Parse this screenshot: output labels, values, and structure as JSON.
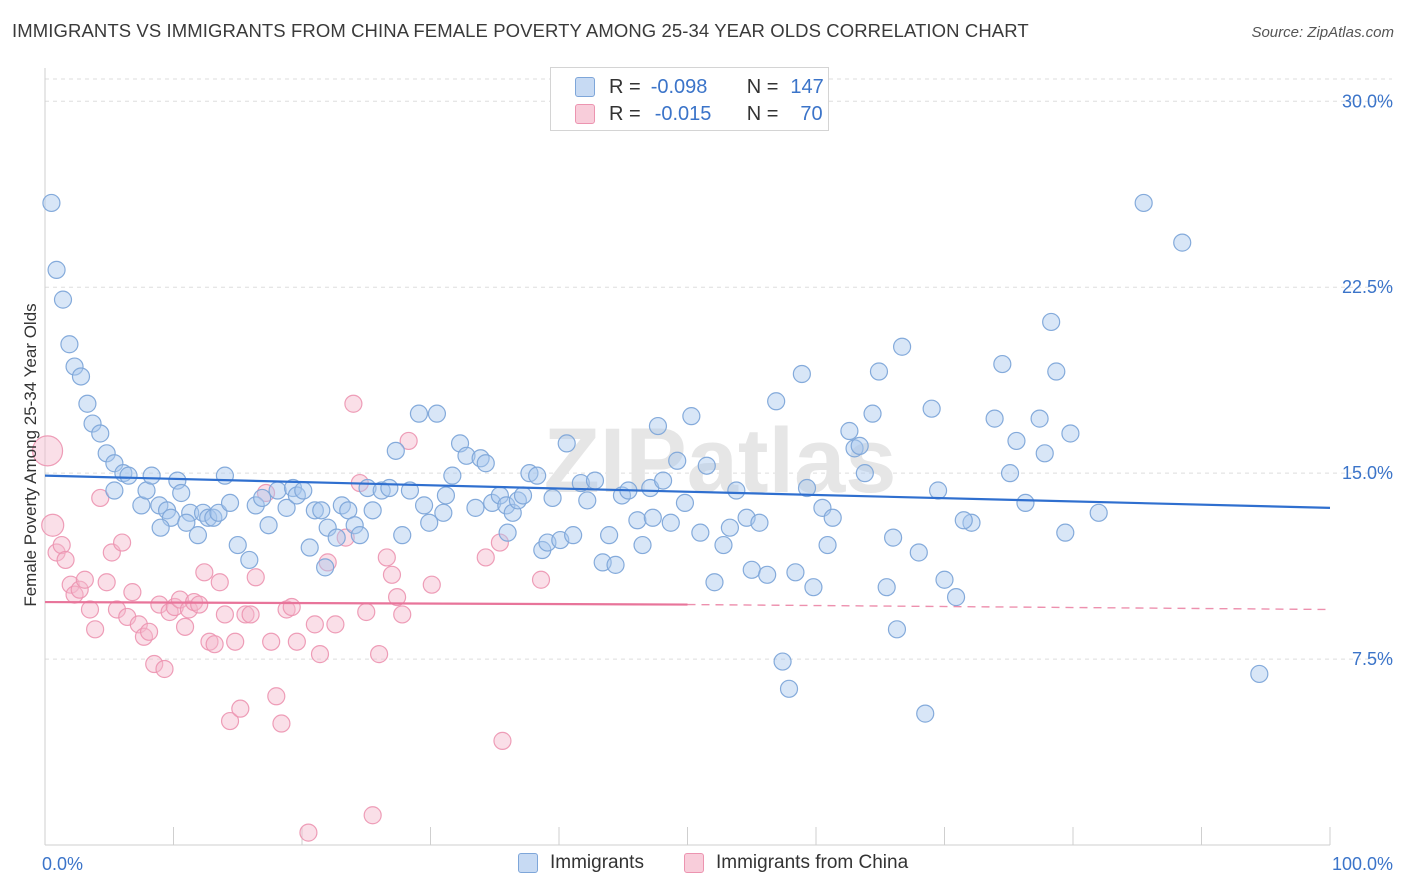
{
  "title": "IMMIGRANTS VS IMMIGRANTS FROM CHINA FEMALE POVERTY AMONG 25-34 YEAR OLDS CORRELATION CHART",
  "source": "Source: ZipAtlas.com",
  "watermark": "ZIPatlas",
  "legend": {
    "rows": [
      {
        "r_label": "R =",
        "r_value": "-0.098",
        "n_label": "N =",
        "n_value": "147"
      },
      {
        "r_label": "R =",
        "r_value": "-0.015",
        "n_label": "N =",
        "n_value": "70"
      }
    ]
  },
  "colors": {
    "blue_fill": "#a9c8ee",
    "blue_stroke": "#7ea6d9",
    "blue_line": "#2f6fcf",
    "pink_fill": "#f5b8cb",
    "pink_stroke": "#ec94b0",
    "pink_line": "#e8749a",
    "axis_text": "#3b74c9",
    "grid": "#dddddd"
  },
  "chart_data": {
    "type": "scatter",
    "title": "IMMIGRANTS VS IMMIGRANTS FROM CHINA FEMALE POVERTY AMONG 25-34 YEAR OLDS CORRELATION CHART",
    "xlabel": "",
    "ylabel": "Female Poverty Among 25-34 Year Olds",
    "xlim": [
      0,
      100
    ],
    "ylim": [
      0,
      30.9
    ],
    "x_tick_labels": [
      "0.0%",
      "100.0%"
    ],
    "y_ticks": [
      7.5,
      15.0,
      22.5,
      30.0
    ],
    "y_tick_labels": [
      "7.5%",
      "15.0%",
      "22.5%",
      "30.0%"
    ],
    "legend_position": "top-center",
    "series": [
      {
        "name": "Immigrants",
        "r": -0.098,
        "n": 147,
        "trend": {
          "x": [
            0,
            100
          ],
          "y": [
            14.9,
            13.6
          ]
        },
        "points": [
          [
            0.5,
            25.9
          ],
          [
            0.9,
            23.2
          ],
          [
            1.4,
            22.0
          ],
          [
            1.9,
            20.2
          ],
          [
            2.3,
            19.3
          ],
          [
            2.8,
            18.9
          ],
          [
            3.3,
            17.8
          ],
          [
            3.7,
            17.0
          ],
          [
            4.3,
            16.6
          ],
          [
            4.8,
            15.8
          ],
          [
            5.4,
            15.4
          ],
          [
            6.1,
            15.0
          ],
          [
            5.4,
            14.3
          ],
          [
            6.5,
            14.9
          ],
          [
            7.5,
            13.7
          ],
          [
            7.9,
            14.3
          ],
          [
            8.3,
            14.9
          ],
          [
            8.9,
            13.7
          ],
          [
            9.5,
            13.5
          ],
          [
            9.8,
            13.2
          ],
          [
            10.3,
            14.7
          ],
          [
            10.6,
            14.2
          ],
          [
            11.3,
            13.4
          ],
          [
            11.9,
            12.5
          ],
          [
            12.3,
            13.4
          ],
          [
            12.7,
            13.2
          ],
          [
            13.1,
            13.2
          ],
          [
            13.5,
            13.4
          ],
          [
            14.0,
            14.9
          ],
          [
            14.4,
            13.8
          ],
          [
            15.0,
            12.1
          ],
          [
            15.9,
            11.5
          ],
          [
            16.4,
            13.7
          ],
          [
            16.9,
            14.0
          ],
          [
            17.4,
            12.9
          ],
          [
            18.1,
            14.3
          ],
          [
            18.8,
            13.6
          ],
          [
            19.3,
            14.4
          ],
          [
            19.6,
            14.1
          ],
          [
            20.1,
            14.3
          ],
          [
            20.6,
            12.0
          ],
          [
            21.0,
            13.5
          ],
          [
            21.5,
            13.5
          ],
          [
            22.0,
            12.8
          ],
          [
            22.7,
            12.4
          ],
          [
            23.1,
            13.7
          ],
          [
            23.6,
            13.5
          ],
          [
            24.1,
            12.9
          ],
          [
            24.5,
            12.5
          ],
          [
            25.1,
            14.4
          ],
          [
            25.5,
            13.5
          ],
          [
            26.2,
            14.3
          ],
          [
            26.8,
            14.4
          ],
          [
            27.3,
            15.9
          ],
          [
            27.8,
            12.5
          ],
          [
            28.4,
            14.3
          ],
          [
            29.1,
            17.4
          ],
          [
            29.5,
            13.7
          ],
          [
            29.9,
            13.0
          ],
          [
            30.5,
            17.4
          ],
          [
            31.2,
            14.1
          ],
          [
            31.7,
            14.9
          ],
          [
            32.3,
            16.2
          ],
          [
            32.8,
            15.7
          ],
          [
            33.5,
            13.6
          ],
          [
            33.9,
            15.6
          ],
          [
            34.3,
            15.4
          ],
          [
            34.8,
            13.8
          ],
          [
            35.4,
            14.1
          ],
          [
            35.9,
            13.7
          ],
          [
            36.4,
            13.4
          ],
          [
            36.8,
            13.9
          ],
          [
            37.2,
            14.1
          ],
          [
            37.7,
            15.0
          ],
          [
            38.3,
            14.9
          ],
          [
            38.7,
            11.9
          ],
          [
            39.1,
            12.2
          ],
          [
            39.5,
            14.0
          ],
          [
            40.1,
            12.3
          ],
          [
            40.6,
            16.2
          ],
          [
            41.1,
            12.5
          ],
          [
            41.7,
            14.6
          ],
          [
            42.2,
            13.9
          ],
          [
            42.8,
            14.7
          ],
          [
            43.4,
            11.4
          ],
          [
            43.9,
            12.5
          ],
          [
            44.4,
            11.3
          ],
          [
            44.9,
            14.1
          ],
          [
            45.4,
            14.3
          ],
          [
            46.1,
            13.1
          ],
          [
            46.5,
            12.1
          ],
          [
            47.1,
            14.4
          ],
          [
            47.7,
            16.9
          ],
          [
            48.1,
            14.7
          ],
          [
            48.7,
            13.0
          ],
          [
            49.2,
            15.5
          ],
          [
            49.8,
            13.8
          ],
          [
            50.3,
            17.3
          ],
          [
            51.0,
            12.6
          ],
          [
            51.5,
            15.3
          ],
          [
            52.1,
            10.6
          ],
          [
            52.8,
            12.1
          ],
          [
            53.3,
            12.8
          ],
          [
            53.8,
            14.3
          ],
          [
            54.6,
            13.2
          ],
          [
            55.0,
            11.1
          ],
          [
            55.6,
            13.0
          ],
          [
            56.2,
            10.9
          ],
          [
            56.9,
            17.9
          ],
          [
            57.4,
            7.4
          ],
          [
            57.9,
            6.3
          ],
          [
            58.4,
            11.0
          ],
          [
            58.9,
            19.0
          ],
          [
            59.3,
            14.4
          ],
          [
            59.8,
            10.4
          ],
          [
            60.5,
            13.6
          ],
          [
            60.9,
            12.1
          ],
          [
            61.3,
            13.2
          ],
          [
            62.6,
            16.7
          ],
          [
            63.0,
            16.0
          ],
          [
            63.4,
            16.1
          ],
          [
            63.8,
            15.0
          ],
          [
            64.4,
            17.4
          ],
          [
            64.9,
            19.1
          ],
          [
            65.5,
            10.4
          ],
          [
            66.0,
            12.4
          ],
          [
            66.3,
            8.7
          ],
          [
            66.7,
            20.1
          ],
          [
            68.0,
            11.8
          ],
          [
            68.5,
            5.3
          ],
          [
            69.0,
            17.6
          ],
          [
            69.5,
            14.3
          ],
          [
            70.0,
            10.7
          ],
          [
            70.9,
            10.0
          ],
          [
            72.1,
            13.0
          ],
          [
            73.9,
            17.2
          ],
          [
            74.5,
            19.4
          ],
          [
            75.1,
            15.0
          ],
          [
            75.6,
            16.3
          ],
          [
            76.3,
            13.8
          ],
          [
            77.4,
            17.2
          ],
          [
            77.8,
            15.8
          ],
          [
            78.3,
            21.1
          ],
          [
            78.7,
            19.1
          ],
          [
            79.4,
            12.6
          ],
          [
            79.8,
            16.6
          ],
          [
            82.0,
            13.4
          ],
          [
            85.5,
            25.9
          ],
          [
            88.5,
            24.3
          ],
          [
            94.5,
            6.9
          ],
          [
            71.5,
            13.1
          ],
          [
            47.3,
            13.2
          ],
          [
            31.0,
            13.4
          ],
          [
            21.8,
            11.2
          ],
          [
            11.0,
            13.0
          ],
          [
            9.0,
            12.8
          ],
          [
            36.0,
            12.6
          ]
        ]
      },
      {
        "name": "Immigrants from China",
        "r": -0.015,
        "n": 70,
        "trend": {
          "x": [
            0,
            50
          ],
          "y": [
            9.8,
            9.7
          ]
        },
        "trend_dashed": {
          "x": [
            50,
            100
          ],
          "y": [
            9.7,
            9.5
          ]
        },
        "points": [
          [
            0.2,
            15.9
          ],
          [
            0.6,
            12.9
          ],
          [
            0.9,
            11.8
          ],
          [
            1.3,
            12.1
          ],
          [
            1.6,
            11.5
          ],
          [
            2.0,
            10.5
          ],
          [
            2.3,
            10.1
          ],
          [
            2.7,
            10.3
          ],
          [
            3.1,
            10.7
          ],
          [
            3.5,
            9.5
          ],
          [
            3.9,
            8.7
          ],
          [
            4.3,
            14.0
          ],
          [
            4.8,
            10.6
          ],
          [
            5.2,
            11.8
          ],
          [
            5.6,
            9.5
          ],
          [
            6.0,
            12.2
          ],
          [
            6.4,
            9.2
          ],
          [
            6.8,
            10.2
          ],
          [
            7.3,
            8.9
          ],
          [
            7.7,
            8.4
          ],
          [
            8.1,
            8.6
          ],
          [
            8.5,
            7.3
          ],
          [
            8.9,
            9.7
          ],
          [
            9.3,
            7.1
          ],
          [
            9.7,
            9.4
          ],
          [
            10.1,
            9.6
          ],
          [
            10.5,
            9.9
          ],
          [
            10.9,
            8.8
          ],
          [
            11.2,
            9.5
          ],
          [
            11.6,
            9.8
          ],
          [
            12.0,
            9.7
          ],
          [
            12.4,
            11.0
          ],
          [
            12.8,
            8.2
          ],
          [
            13.2,
            8.1
          ],
          [
            13.6,
            10.6
          ],
          [
            14.0,
            9.3
          ],
          [
            14.4,
            5.0
          ],
          [
            14.8,
            8.2
          ],
          [
            15.2,
            5.5
          ],
          [
            15.6,
            9.3
          ],
          [
            16.0,
            9.3
          ],
          [
            16.4,
            10.8
          ],
          [
            17.2,
            14.2
          ],
          [
            17.6,
            8.2
          ],
          [
            18.0,
            6.0
          ],
          [
            18.4,
            4.9
          ],
          [
            18.8,
            9.5
          ],
          [
            19.2,
            9.6
          ],
          [
            19.6,
            8.2
          ],
          [
            20.5,
            0.5
          ],
          [
            21.0,
            8.9
          ],
          [
            21.4,
            7.7
          ],
          [
            22.0,
            11.4
          ],
          [
            22.6,
            8.9
          ],
          [
            23.4,
            12.4
          ],
          [
            24.0,
            17.8
          ],
          [
            24.5,
            14.6
          ],
          [
            25.0,
            9.4
          ],
          [
            25.5,
            1.2
          ],
          [
            26.0,
            7.7
          ],
          [
            26.6,
            11.6
          ],
          [
            27.0,
            10.9
          ],
          [
            27.4,
            10.0
          ],
          [
            27.8,
            9.3
          ],
          [
            28.3,
            16.3
          ],
          [
            30.1,
            10.5
          ],
          [
            34.3,
            11.6
          ],
          [
            35.4,
            12.2
          ],
          [
            35.6,
            4.2
          ],
          [
            38.6,
            10.7
          ]
        ]
      }
    ]
  },
  "bottom_legend": [
    {
      "label": "Immigrants"
    },
    {
      "label": "Immigrants from China"
    }
  ]
}
